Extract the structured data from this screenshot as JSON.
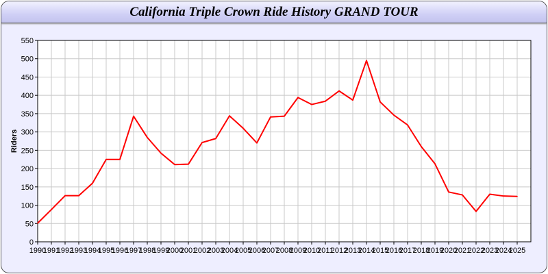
{
  "chart_data": {
    "type": "line",
    "title": "California Triple Crown Ride History GRAND TOUR",
    "xlabel": "",
    "ylabel": "Riders",
    "ylim": [
      0,
      550
    ],
    "yticks": [
      0,
      50,
      100,
      150,
      200,
      250,
      300,
      350,
      400,
      450,
      500,
      550
    ],
    "grid": true,
    "x": [
      "1990",
      "1991",
      "1992",
      "1993",
      "1994",
      "1995",
      "1996",
      "1997",
      "1998",
      "1999",
      "2000",
      "2001",
      "2002",
      "2003",
      "2004",
      "2005",
      "2006",
      "2007",
      "2008",
      "2009",
      "2010",
      "2011",
      "2012",
      "2013",
      "2014",
      "2015",
      "2016",
      "2017",
      "2018",
      "2019",
      "2020",
      "2021",
      "2022",
      "2023",
      "2024",
      "2025"
    ],
    "series": [
      {
        "color": "#ff0000",
        "values": [
          51,
          88,
          126,
          126,
          160,
          225,
          225,
          343,
          285,
          242,
          211,
          212,
          271,
          282,
          344,
          310,
          270,
          341,
          343,
          394,
          375,
          384,
          412,
          387,
          495,
          382,
          346,
          319,
          260,
          213,
          136,
          128,
          83,
          130,
          125,
          124
        ]
      }
    ]
  }
}
